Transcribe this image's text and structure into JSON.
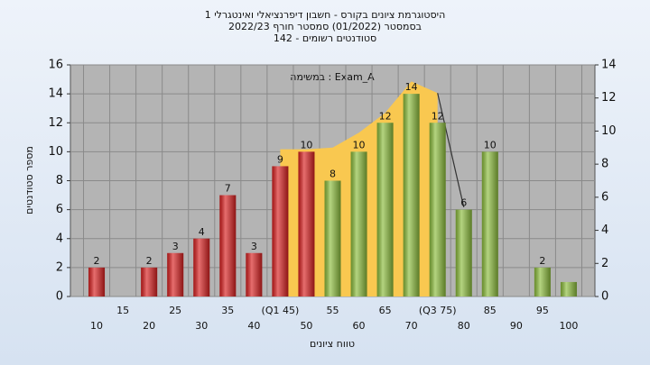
{
  "chart_data": {
    "type": "bar",
    "title": "היסטוגרמת ציונים בקורס - חשבון דיפרנציאלי ואינטגרלי 1",
    "subtitle": "בסמסטר  (01/2022)  סמסטר חורף 2022/23",
    "subtitle2": "סטודנטים רשומים - 142",
    "annotation": "במשימה : Exam_A",
    "xlabel": "טווח ציונים",
    "ylabel": "מספר סטודנטים",
    "categories": [
      "10",
      "15",
      "20",
      "25",
      "30",
      "35",
      "40",
      "(Q1 45)",
      "50",
      "55",
      "60",
      "65",
      "70",
      "(Q3 75)",
      "80",
      "85",
      "90",
      "95",
      "100"
    ],
    "values": [
      2,
      0,
      2,
      3,
      4,
      7,
      3,
      9,
      10,
      8,
      10,
      12,
      14,
      12,
      6,
      10,
      0,
      2,
      1
    ],
    "value_labels": [
      "2",
      null,
      "2",
      "3",
      "4",
      "7",
      "3",
      "9",
      "10",
      "8",
      "10",
      "12",
      "14",
      "12",
      "6",
      "10",
      null,
      "2",
      null
    ],
    "colors": [
      "#d92020",
      "#d92020",
      "#d92020",
      "#d92020",
      "#d92020",
      "#d92020",
      "#d92020",
      "#d92020",
      "#d92020",
      "#8cbd3c",
      "#8cbd3c",
      "#8cbd3c",
      "#8cbd3c",
      "#8cbd3c",
      "#8cbd3c",
      "#8cbd3c",
      "#8cbd3c",
      "#8cbd3c",
      "#8cbd3c"
    ],
    "series": [
      {
        "kind": "area",
        "axis": "y2",
        "color": "#f9c850",
        "values": [
          null,
          null,
          null,
          null,
          null,
          null,
          null,
          8.9,
          8.9,
          9,
          9.9,
          11.1,
          13,
          12.3,
          null,
          null,
          null,
          null,
          null
        ]
      },
      {
        "kind": "line",
        "axis": "y2",
        "color": "#333333",
        "values": [
          null,
          null,
          null,
          null,
          null,
          null,
          null,
          null,
          null,
          null,
          null,
          null,
          null,
          12.3,
          5.4,
          null,
          null,
          null,
          null
        ]
      }
    ],
    "ylim": [
      0,
      16
    ],
    "yticks": [
      0,
      2,
      4,
      6,
      8,
      10,
      12,
      14,
      16
    ],
    "y2lim": [
      0,
      14
    ],
    "y2ticks": [
      0,
      2,
      4,
      6,
      8,
      10,
      12,
      14
    ],
    "grid": true
  }
}
